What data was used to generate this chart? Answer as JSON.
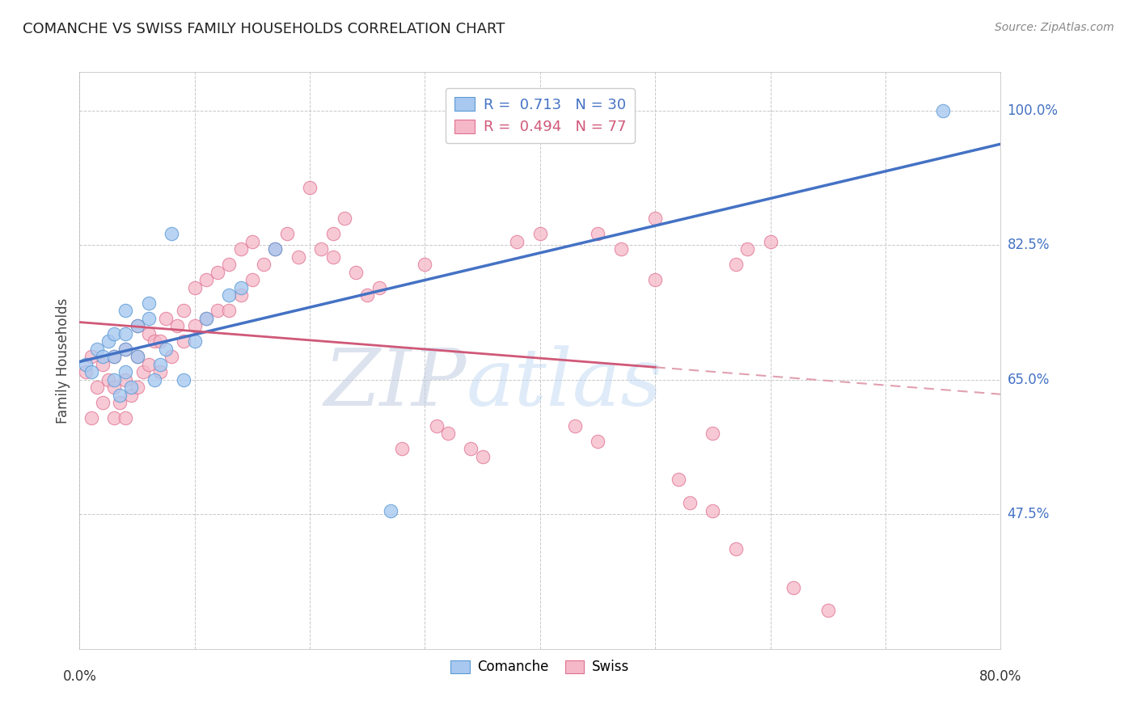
{
  "title": "COMANCHE VS SWISS FAMILY HOUSEHOLDS CORRELATION CHART",
  "source": "Source: ZipAtlas.com",
  "ylabel": "Family Households",
  "watermark_zip": "ZIP",
  "watermark_atlas": "atlas",
  "xlim": [
    0.0,
    0.8
  ],
  "ylim": [
    0.3,
    1.05
  ],
  "xticks": [
    0.0,
    0.1,
    0.2,
    0.3,
    0.4,
    0.5,
    0.6,
    0.7,
    0.8
  ],
  "yticks": [
    0.475,
    0.65,
    0.825,
    1.0
  ],
  "yticklabels": [
    "47.5%",
    "65.0%",
    "82.5%",
    "100.0%"
  ],
  "grid_color": "#c8c8c8",
  "background_color": "#ffffff",
  "comanche_fill": "#a8c8f0",
  "comanche_edge": "#5b9bd5",
  "swiss_fill": "#f5b8c8",
  "swiss_edge": "#e07090",
  "comanche_line_color": "#4472c4",
  "swiss_line_color": "#d05878",
  "swiss_dash_color": "#e0a0b0",
  "legend_text_blue": "#4472c4",
  "legend_text_pink": "#d05878",
  "ytick_color": "#4472c4",
  "comanche_x": [
    0.005,
    0.01,
    0.015,
    0.02,
    0.025,
    0.03,
    0.03,
    0.03,
    0.035,
    0.04,
    0.04,
    0.04,
    0.04,
    0.045,
    0.05,
    0.05,
    0.06,
    0.06,
    0.065,
    0.07,
    0.075,
    0.08,
    0.09,
    0.1,
    0.11,
    0.13,
    0.14,
    0.17,
    0.27,
    0.75
  ],
  "comanche_y": [
    0.67,
    0.66,
    0.69,
    0.68,
    0.7,
    0.65,
    0.68,
    0.71,
    0.63,
    0.66,
    0.69,
    0.71,
    0.74,
    0.64,
    0.68,
    0.72,
    0.73,
    0.75,
    0.65,
    0.67,
    0.69,
    0.84,
    0.65,
    0.7,
    0.73,
    0.76,
    0.77,
    0.82,
    0.48,
    1.0
  ],
  "swiss_x": [
    0.005,
    0.01,
    0.01,
    0.015,
    0.02,
    0.02,
    0.025,
    0.03,
    0.03,
    0.03,
    0.035,
    0.04,
    0.04,
    0.04,
    0.045,
    0.05,
    0.05,
    0.05,
    0.055,
    0.06,
    0.06,
    0.065,
    0.07,
    0.07,
    0.075,
    0.08,
    0.085,
    0.09,
    0.09,
    0.1,
    0.1,
    0.11,
    0.11,
    0.12,
    0.12,
    0.13,
    0.13,
    0.14,
    0.14,
    0.15,
    0.15,
    0.16,
    0.17,
    0.18,
    0.19,
    0.2,
    0.21,
    0.22,
    0.22,
    0.23,
    0.24,
    0.25,
    0.26,
    0.28,
    0.3,
    0.31,
    0.32,
    0.34,
    0.35,
    0.38,
    0.4,
    0.43,
    0.45,
    0.45,
    0.47,
    0.5,
    0.5,
    0.52,
    0.53,
    0.55,
    0.55,
    0.57,
    0.57,
    0.58,
    0.6,
    0.62,
    0.65
  ],
  "swiss_y": [
    0.66,
    0.6,
    0.68,
    0.64,
    0.62,
    0.67,
    0.65,
    0.6,
    0.64,
    0.68,
    0.62,
    0.6,
    0.65,
    0.69,
    0.63,
    0.64,
    0.68,
    0.72,
    0.66,
    0.67,
    0.71,
    0.7,
    0.66,
    0.7,
    0.73,
    0.68,
    0.72,
    0.7,
    0.74,
    0.72,
    0.77,
    0.73,
    0.78,
    0.74,
    0.79,
    0.74,
    0.8,
    0.76,
    0.82,
    0.78,
    0.83,
    0.8,
    0.82,
    0.84,
    0.81,
    0.9,
    0.82,
    0.81,
    0.84,
    0.86,
    0.79,
    0.76,
    0.77,
    0.56,
    0.8,
    0.59,
    0.58,
    0.56,
    0.55,
    0.83,
    0.84,
    0.59,
    0.57,
    0.84,
    0.82,
    0.86,
    0.78,
    0.52,
    0.49,
    0.48,
    0.58,
    0.8,
    0.43,
    0.82,
    0.83,
    0.38,
    0.35
  ]
}
